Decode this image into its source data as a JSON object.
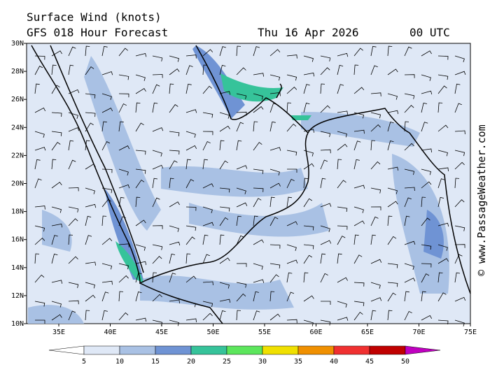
{
  "header": {
    "title": "Surface Wind (knots)",
    "subtitle": "GFS 018 Hour Forecast",
    "date": "Thu 16 Apr 2026",
    "time": "00 UTC"
  },
  "map": {
    "lat_labels": [
      "30N",
      "28N",
      "26N",
      "24N",
      "22N",
      "20N",
      "18N",
      "16N",
      "14N",
      "12N",
      "10N"
    ],
    "lon_labels": [
      "35E",
      "40E",
      "45E",
      "50E",
      "55E",
      "60E",
      "65E",
      "70E",
      "75E"
    ]
  },
  "legend": {
    "ticks": [
      5,
      10,
      15,
      20,
      25,
      30,
      35,
      40,
      45,
      50
    ],
    "colors": [
      "#ffffff",
      "#dfe8f6",
      "#a9c1e4",
      "#6f93d4",
      "#36c39a",
      "#5ce65c",
      "#f0e000",
      "#f09000",
      "#f03030",
      "#c00000",
      "#c000c0"
    ]
  },
  "credit": "© www.PassageWeather.com"
}
